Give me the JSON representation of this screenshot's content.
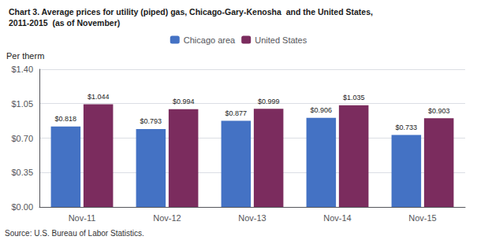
{
  "chart_data": {
    "type": "bar",
    "title": "Chart 3. Average prices for utility (piped) gas, Chicago-Gary-Kenosha  and the United States,",
    "subtitle": "2011-2015  (as of November)",
    "ylabel": "Per therm",
    "annotations": [
      "Source: U.S. Bureau of Labor Statistics."
    ],
    "categories": [
      "Nov-11",
      "Nov-12",
      "Nov-13",
      "Nov-14",
      "Nov-15"
    ],
    "series": [
      {
        "name": "Chicago area",
        "color": "#4472C4",
        "values": [
          0.818,
          0.793,
          0.877,
          0.906,
          0.733
        ],
        "value_labels": [
          "$0.818",
          "$0.793",
          "$0.877",
          "$0.906",
          "$0.733"
        ]
      },
      {
        "name": "United States",
        "color": "#7B2C5E",
        "values": [
          1.044,
          0.994,
          0.999,
          1.035,
          0.903
        ],
        "value_labels": [
          "$1.044",
          "$0.994",
          "$0.999",
          "$1.035",
          "$0.903"
        ]
      }
    ],
    "ylim": [
      0,
      1.4
    ],
    "yticks": [
      {
        "value": 0.0,
        "label": "$0.00"
      },
      {
        "value": 0.35,
        "label": "$0.35"
      },
      {
        "value": 0.7,
        "label": "$0.70"
      },
      {
        "value": 1.05,
        "label": "$1.05"
      },
      {
        "value": 1.4,
        "label": "$1.40"
      }
    ],
    "grid": true,
    "legend": "top",
    "data_labels": true
  }
}
